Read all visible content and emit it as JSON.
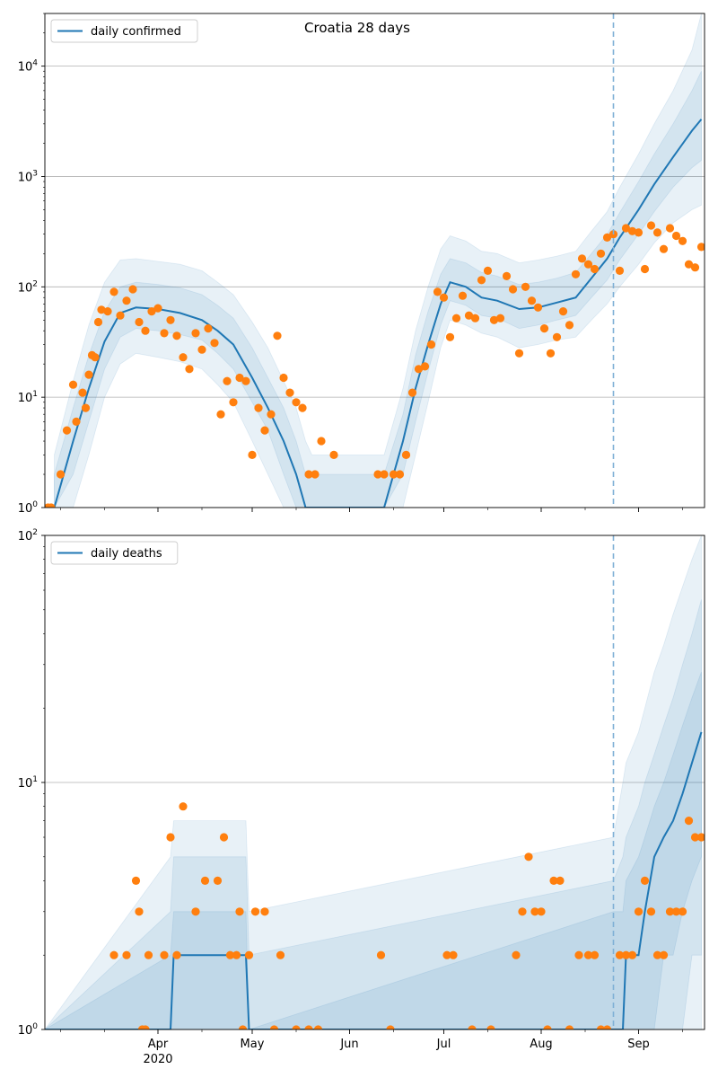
{
  "title": "Croatia 28 days",
  "colors": {
    "line": "#1f77b4",
    "points": "#ff7f0e",
    "band": "#1f77b4",
    "forecast_line": "#7fb0d6",
    "grid": "#b0b0b0"
  },
  "chart_data": [
    {
      "type": "line",
      "name": "confirmed",
      "yscale": "log",
      "ylim": [
        1,
        30000
      ],
      "xlim": [
        "2020-02-25",
        "2020-09-22"
      ],
      "y_ticks": [
        {
          "value": 1,
          "base": "10",
          "exp": "0"
        },
        {
          "value": 10,
          "base": "10",
          "exp": "1"
        },
        {
          "value": 100,
          "base": "10",
          "exp": "2"
        },
        {
          "value": 1000,
          "base": "10",
          "exp": "3"
        },
        {
          "value": 10000,
          "base": "10",
          "exp": "4"
        }
      ],
      "grid": "horizontal",
      "legend": {
        "label": "daily confirmed",
        "placement": "top-left"
      },
      "forecast_start": "2020-08-24",
      "model_line": {
        "x": [
          "2020-02-28",
          "2020-03-05",
          "2020-03-10",
          "2020-03-15",
          "2020-03-20",
          "2020-03-25",
          "2020-04-01",
          "2020-04-08",
          "2020-04-15",
          "2020-04-20",
          "2020-04-25",
          "2020-05-01",
          "2020-05-06",
          "2020-05-11",
          "2020-05-15",
          "2020-05-18",
          "2020-05-20",
          "2020-06-01",
          "2020-06-12",
          "2020-06-18",
          "2020-06-22",
          "2020-06-26",
          "2020-06-30",
          "2020-07-03",
          "2020-07-08",
          "2020-07-13",
          "2020-07-18",
          "2020-07-25",
          "2020-07-31",
          "2020-08-06",
          "2020-08-12",
          "2020-08-17",
          "2020-08-22",
          "2020-08-26",
          "2020-09-01",
          "2020-09-06",
          "2020-09-12",
          "2020-09-18",
          "2020-09-21"
        ],
        "values": [
          1,
          4,
          12,
          32,
          58,
          65,
          63,
          58,
          50,
          40,
          30,
          15,
          8,
          4,
          2,
          1,
          1,
          1,
          1,
          4,
          12,
          30,
          70,
          110,
          100,
          80,
          75,
          63,
          65,
          72,
          80,
          120,
          180,
          280,
          500,
          850,
          1500,
          2600,
          3300
        ]
      },
      "bands": [
        {
          "lo": [
            1,
            1,
            3,
            10,
            20,
            25,
            23,
            21,
            18,
            13,
            9,
            4,
            2,
            1,
            1,
            1,
            1,
            1,
            1,
            1,
            3,
            9,
            28,
            50,
            45,
            38,
            35,
            28,
            30,
            33,
            35,
            50,
            70,
            100,
            160,
            250,
            380,
            500,
            550
          ],
          "hi": [
            3,
            14,
            45,
            110,
            175,
            180,
            170,
            160,
            140,
            110,
            85,
            48,
            28,
            14,
            8,
            4,
            3,
            3,
            3,
            12,
            40,
            100,
            220,
            290,
            260,
            210,
            200,
            165,
            175,
            190,
            210,
            320,
            480,
            800,
            1600,
            3000,
            6000,
            14000,
            30000
          ]
        },
        {
          "lo": [
            1,
            2,
            6,
            18,
            35,
            42,
            40,
            37,
            33,
            25,
            18,
            9,
            5,
            2,
            1,
            1,
            1,
            1,
            1,
            2,
            6,
            17,
            45,
            75,
            68,
            55,
            52,
            42,
            45,
            50,
            55,
            80,
            115,
            175,
            300,
            480,
            800,
            1200,
            1400
          ],
          "hi": [
            2,
            8,
            24,
            60,
            100,
            110,
            105,
            98,
            85,
            68,
            52,
            28,
            15,
            8,
            4,
            2,
            2,
            2,
            2,
            7,
            24,
            60,
            130,
            180,
            165,
            135,
            125,
            105,
            110,
            120,
            135,
            200,
            300,
            470,
            900,
            1600,
            3000,
            6000,
            9000
          ]
        }
      ],
      "points": {
        "x": [
          "2020-02-26",
          "2020-02-27",
          "2020-03-01",
          "2020-03-03",
          "2020-03-05",
          "2020-03-06",
          "2020-03-08",
          "2020-03-09",
          "2020-03-10",
          "2020-03-11",
          "2020-03-12",
          "2020-03-13",
          "2020-03-14",
          "2020-03-16",
          "2020-03-18",
          "2020-03-20",
          "2020-03-22",
          "2020-03-24",
          "2020-03-26",
          "2020-03-28",
          "2020-03-30",
          "2020-04-01",
          "2020-04-03",
          "2020-04-05",
          "2020-04-07",
          "2020-04-09",
          "2020-04-11",
          "2020-04-13",
          "2020-04-15",
          "2020-04-17",
          "2020-04-19",
          "2020-04-21",
          "2020-04-23",
          "2020-04-25",
          "2020-04-27",
          "2020-04-29",
          "2020-05-01",
          "2020-05-03",
          "2020-05-05",
          "2020-05-07",
          "2020-05-09",
          "2020-05-11",
          "2020-05-13",
          "2020-05-15",
          "2020-05-17",
          "2020-05-19",
          "2020-05-21",
          "2020-05-23",
          "2020-05-27",
          "2020-06-10",
          "2020-06-12",
          "2020-06-15",
          "2020-06-17",
          "2020-06-19",
          "2020-06-21",
          "2020-06-23",
          "2020-06-25",
          "2020-06-27",
          "2020-06-29",
          "2020-07-01",
          "2020-07-03",
          "2020-07-05",
          "2020-07-07",
          "2020-07-09",
          "2020-07-11",
          "2020-07-13",
          "2020-07-15",
          "2020-07-17",
          "2020-07-19",
          "2020-07-21",
          "2020-07-23",
          "2020-07-25",
          "2020-07-27",
          "2020-07-29",
          "2020-07-31",
          "2020-08-02",
          "2020-08-04",
          "2020-08-06",
          "2020-08-08",
          "2020-08-10",
          "2020-08-12",
          "2020-08-14",
          "2020-08-16",
          "2020-08-18",
          "2020-08-20",
          "2020-08-22",
          "2020-08-24",
          "2020-08-26",
          "2020-08-28",
          "2020-08-30",
          "2020-09-01",
          "2020-09-03",
          "2020-09-05",
          "2020-09-07",
          "2020-09-09",
          "2020-09-11",
          "2020-09-13",
          "2020-09-15",
          "2020-09-17",
          "2020-09-19",
          "2020-09-21"
        ],
        "values": [
          1,
          1,
          2,
          5,
          13,
          6,
          11,
          8,
          16,
          24,
          23,
          48,
          62,
          60,
          90,
          55,
          75,
          95,
          48,
          40,
          60,
          64,
          38,
          50,
          36,
          23,
          18,
          38,
          27,
          42,
          31,
          7,
          14,
          9,
          15,
          14,
          3,
          8,
          5,
          7,
          36,
          15,
          11,
          9,
          8,
          2,
          2,
          4,
          3,
          2,
          2,
          2,
          2,
          3,
          11,
          18,
          19,
          30,
          90,
          80,
          35,
          52,
          83,
          55,
          52,
          115,
          140,
          50,
          52,
          125,
          95,
          25,
          100,
          75,
          65,
          42,
          25,
          35,
          60,
          45,
          130,
          180,
          160,
          145,
          200,
          280,
          300,
          140,
          340,
          320,
          310,
          145,
          360,
          310,
          220,
          340,
          290,
          260,
          160,
          150,
          230
        ]
      }
    },
    {
      "type": "line",
      "name": "deaths",
      "yscale": "log",
      "ylim": [
        1,
        100
      ],
      "xlim": [
        "2020-02-25",
        "2020-09-22"
      ],
      "y_ticks": [
        {
          "value": 1,
          "base": "10",
          "exp": "0"
        },
        {
          "value": 10,
          "base": "10",
          "exp": "1"
        },
        {
          "value": 100,
          "base": "10",
          "exp": "2"
        }
      ],
      "x_ticks": [
        {
          "date": "2020-04-01",
          "label": "Apr",
          "sub": "2020"
        },
        {
          "date": "2020-05-01",
          "label": "May"
        },
        {
          "date": "2020-06-01",
          "label": "Jun"
        },
        {
          "date": "2020-07-01",
          "label": "Jul"
        },
        {
          "date": "2020-08-01",
          "label": "Aug"
        },
        {
          "date": "2020-09-01",
          "label": "Sep"
        }
      ],
      "grid": "horizontal",
      "legend": {
        "label": "daily deaths",
        "placement": "top-left"
      },
      "forecast_start": "2020-08-24",
      "model_line": {
        "x": [
          "2020-02-25",
          "2020-04-05",
          "2020-04-06",
          "2020-04-29",
          "2020-04-30",
          "2020-08-24",
          "2020-08-27",
          "2020-08-28",
          "2020-09-01",
          "2020-09-03",
          "2020-09-06",
          "2020-09-09",
          "2020-09-12",
          "2020-09-15",
          "2020-09-18",
          "2020-09-21"
        ],
        "values": [
          1,
          1,
          2,
          2,
          1,
          1,
          1,
          2,
          2,
          3,
          5,
          6,
          7,
          9,
          12,
          16
        ]
      },
      "bands": [
        {
          "lo": [
            1,
            1,
            1,
            1,
            1,
            1,
            1,
            1,
            1,
            1,
            1,
            1,
            1,
            1,
            1,
            1
          ],
          "hi": [
            1,
            5,
            7,
            7,
            3,
            6,
            10,
            12,
            16,
            20,
            28,
            36,
            48,
            62,
            80,
            100
          ]
        },
        {
          "lo": [
            1,
            1,
            1,
            1,
            1,
            1,
            1,
            1,
            1,
            1,
            1,
            1,
            1,
            1,
            2,
            2
          ],
          "hi": [
            1,
            3,
            5,
            5,
            2,
            4,
            5,
            6,
            8,
            10,
            13,
            17,
            22,
            30,
            40,
            55
          ]
        },
        {
          "lo": [
            1,
            1,
            1,
            1,
            1,
            1,
            1,
            1,
            1,
            1,
            1,
            2,
            2,
            3,
            4,
            5
          ],
          "hi": [
            1,
            2,
            3,
            3,
            1,
            3,
            3,
            4,
            5,
            6,
            8,
            10,
            13,
            17,
            22,
            28
          ]
        }
      ],
      "points": {
        "x": [
          "2020-03-18",
          "2020-03-22",
          "2020-03-25",
          "2020-03-26",
          "2020-03-27",
          "2020-03-28",
          "2020-03-29",
          "2020-04-03",
          "2020-04-05",
          "2020-04-07",
          "2020-04-09",
          "2020-04-13",
          "2020-04-16",
          "2020-04-20",
          "2020-04-22",
          "2020-04-24",
          "2020-04-26",
          "2020-04-27",
          "2020-04-28",
          "2020-04-30",
          "2020-05-02",
          "2020-05-05",
          "2020-05-08",
          "2020-05-10",
          "2020-05-15",
          "2020-05-19",
          "2020-05-22",
          "2020-06-11",
          "2020-06-14",
          "2020-07-02",
          "2020-07-04",
          "2020-07-10",
          "2020-07-16",
          "2020-07-24",
          "2020-07-26",
          "2020-07-28",
          "2020-07-30",
          "2020-08-01",
          "2020-08-03",
          "2020-08-05",
          "2020-08-07",
          "2020-08-10",
          "2020-08-13",
          "2020-08-16",
          "2020-08-18",
          "2020-08-20",
          "2020-08-22",
          "2020-08-26",
          "2020-08-28",
          "2020-08-30",
          "2020-09-01",
          "2020-09-03",
          "2020-09-05",
          "2020-09-07",
          "2020-09-09",
          "2020-09-11",
          "2020-09-13",
          "2020-09-15",
          "2020-09-17",
          "2020-09-19",
          "2020-09-21"
        ],
        "values": [
          2,
          2,
          4,
          3,
          1,
          1,
          2,
          2,
          6,
          2,
          8,
          3,
          4,
          4,
          6,
          2,
          2,
          3,
          1,
          2,
          3,
          3,
          1,
          2,
          1,
          1,
          1,
          2,
          1,
          2,
          2,
          1,
          1,
          2,
          3,
          5,
          3,
          3,
          1,
          4,
          4,
          1,
          2,
          2,
          2,
          1,
          1,
          2,
          2,
          2,
          3,
          4,
          3,
          2,
          2,
          3,
          3,
          3,
          7,
          6,
          6
        ]
      }
    }
  ]
}
